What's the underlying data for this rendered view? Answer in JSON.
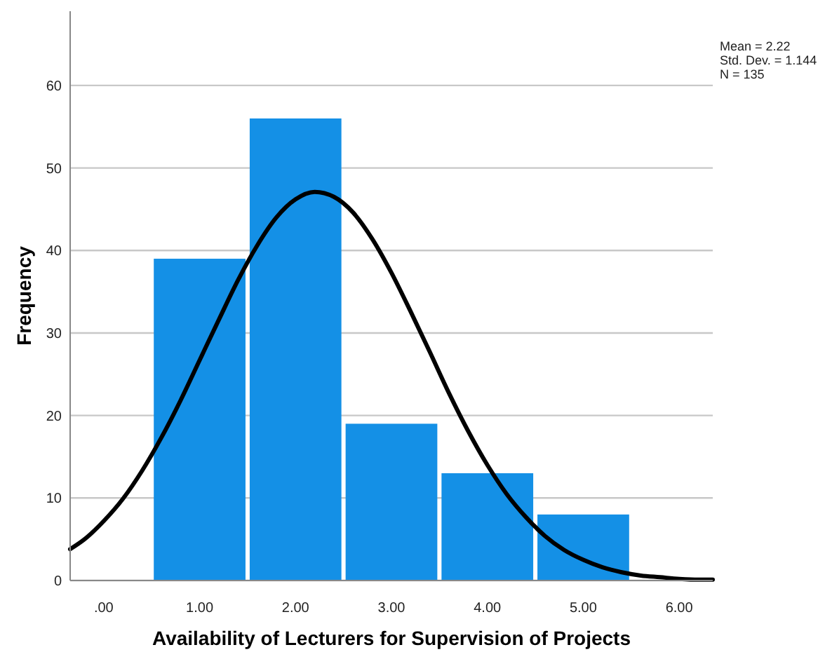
{
  "chart_data": {
    "type": "histogram",
    "xlabel": "Availability of Lecturers for Supervision of Projects",
    "ylabel": "Frequency",
    "bins": [
      0.5,
      1.5,
      2.5,
      3.5,
      4.5,
      5.5
    ],
    "values": [
      39,
      56,
      19,
      13,
      8
    ],
    "color": "#1490e6",
    "series": [
      {
        "type": "line",
        "color": "#000000",
        "x": [
          -0.35,
          -0.2,
          0,
          0.2,
          0.4,
          0.6,
          0.8,
          1,
          1.2,
          1.4,
          1.6,
          1.8,
          2,
          2.2,
          2.4,
          2.6,
          2.8,
          3,
          3.2,
          3.4,
          3.6,
          3.8,
          4,
          4.2,
          4.4,
          4.6,
          4.8,
          5,
          5.2,
          5.4,
          5.6,
          5.8,
          6,
          6.2,
          6.35
        ],
        "values": [
          3.8,
          5,
          7.2,
          9.9,
          13.3,
          17.3,
          21.8,
          26.7,
          31.6,
          36.4,
          40.6,
          44,
          46.2,
          47.1,
          46.5,
          44.6,
          41.4,
          37.3,
          32.6,
          27.7,
          22.7,
          18.1,
          14,
          10.5,
          7.7,
          5.4,
          3.7,
          2.5,
          1.6,
          1,
          0.6,
          0.4,
          0.2,
          0.1,
          0.1
        ]
      }
    ],
    "xlim": [
      -0.35,
      6.35
    ],
    "xticks": [
      {
        "value": 0,
        "label": ".00"
      },
      {
        "value": 1,
        "label": "1.00"
      },
      {
        "value": 2,
        "label": "2.00"
      },
      {
        "value": 3,
        "label": "3.00"
      },
      {
        "value": 4,
        "label": "4.00"
      },
      {
        "value": 5,
        "label": "5.00"
      },
      {
        "value": 6,
        "label": "6.00"
      }
    ],
    "ylim": [
      0,
      69
    ],
    "yticks": [
      0,
      10,
      20,
      30,
      40,
      50,
      60
    ],
    "grid": "y",
    "annotations": [
      "Mean = 2.22",
      "Std. Dev. = 1.144",
      "N = 135"
    ]
  }
}
